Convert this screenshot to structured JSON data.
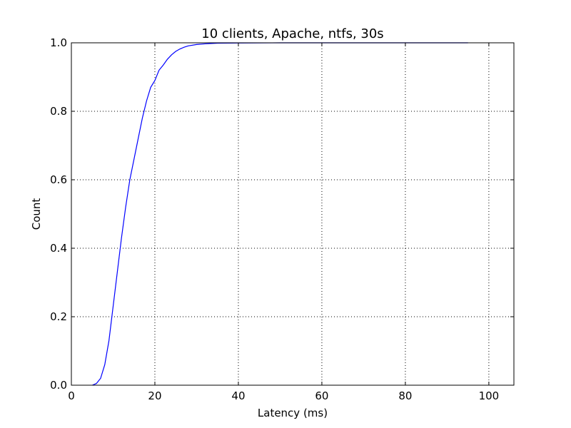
{
  "chart_data": {
    "type": "line",
    "title": "10 clients, Apache, ntfs, 30s",
    "xlabel": "Latency (ms)",
    "ylabel": "Count",
    "xlim": [
      0,
      106
    ],
    "ylim": [
      0,
      1.0
    ],
    "xticks": [
      0,
      20,
      40,
      60,
      80,
      100
    ],
    "xtick_labels": [
      "0",
      "20",
      "40",
      "60",
      "80",
      "100"
    ],
    "yticks": [
      0.0,
      0.2,
      0.4,
      0.6,
      0.8,
      1.0
    ],
    "ytick_labels": [
      "0.0",
      "0.2",
      "0.4",
      "0.6",
      "0.8",
      "1.0"
    ],
    "grid": true,
    "series": [
      {
        "color": "#0000ff",
        "x": [
          5,
          6,
          7,
          8,
          9,
          10,
          11,
          12,
          13,
          14,
          15,
          16,
          17,
          18,
          19,
          20,
          21,
          22,
          23,
          24,
          25,
          26,
          27,
          28,
          30,
          32,
          35,
          40,
          50,
          60,
          70,
          80,
          95
        ],
        "y": [
          0.0,
          0.005,
          0.02,
          0.06,
          0.13,
          0.23,
          0.33,
          0.43,
          0.52,
          0.6,
          0.66,
          0.72,
          0.78,
          0.83,
          0.87,
          0.89,
          0.92,
          0.935,
          0.952,
          0.965,
          0.975,
          0.982,
          0.987,
          0.991,
          0.995,
          0.997,
          0.999,
          0.9995,
          1.0,
          1.0,
          1.0,
          1.0,
          1.0
        ]
      }
    ]
  }
}
